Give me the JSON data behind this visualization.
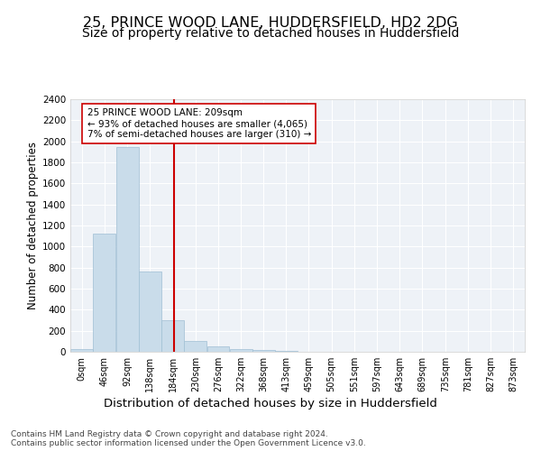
{
  "title1": "25, PRINCE WOOD LANE, HUDDERSFIELD, HD2 2DG",
  "title2": "Size of property relative to detached houses in Huddersfield",
  "xlabel": "Distribution of detached houses by size in Huddersfield",
  "ylabel": "Number of detached properties",
  "bar_color": "#c9dcea",
  "bar_edge_color": "#a0bfd4",
  "vline_color": "#cc0000",
  "vline_x": 209,
  "annotation_text": "25 PRINCE WOOD LANE: 209sqm\n← 93% of detached houses are smaller (4,065)\n7% of semi-detached houses are larger (310) →",
  "annotation_box_color": "#ffffff",
  "annotation_box_edge": "#cc0000",
  "footer1": "Contains HM Land Registry data © Crown copyright and database right 2024.",
  "footer2": "Contains public sector information licensed under the Open Government Licence v3.0.",
  "bin_edges": [
    0,
    46,
    92,
    138,
    184,
    230,
    276,
    322,
    368,
    413,
    459,
    505,
    551,
    597,
    643,
    689,
    735,
    781,
    827,
    873,
    919
  ],
  "bar_heights": [
    30,
    1120,
    1950,
    760,
    300,
    100,
    50,
    30,
    20,
    5,
    0,
    0,
    0,
    0,
    0,
    0,
    0,
    0,
    0,
    0
  ],
  "ylim": [
    0,
    2400
  ],
  "yticks": [
    0,
    200,
    400,
    600,
    800,
    1000,
    1200,
    1400,
    1600,
    1800,
    2000,
    2200,
    2400
  ],
  "plot_bg_color": "#eef2f7",
  "title1_fontsize": 11.5,
  "title2_fontsize": 10,
  "xlabel_fontsize": 9.5,
  "ylabel_fontsize": 8.5,
  "footer_fontsize": 6.5
}
